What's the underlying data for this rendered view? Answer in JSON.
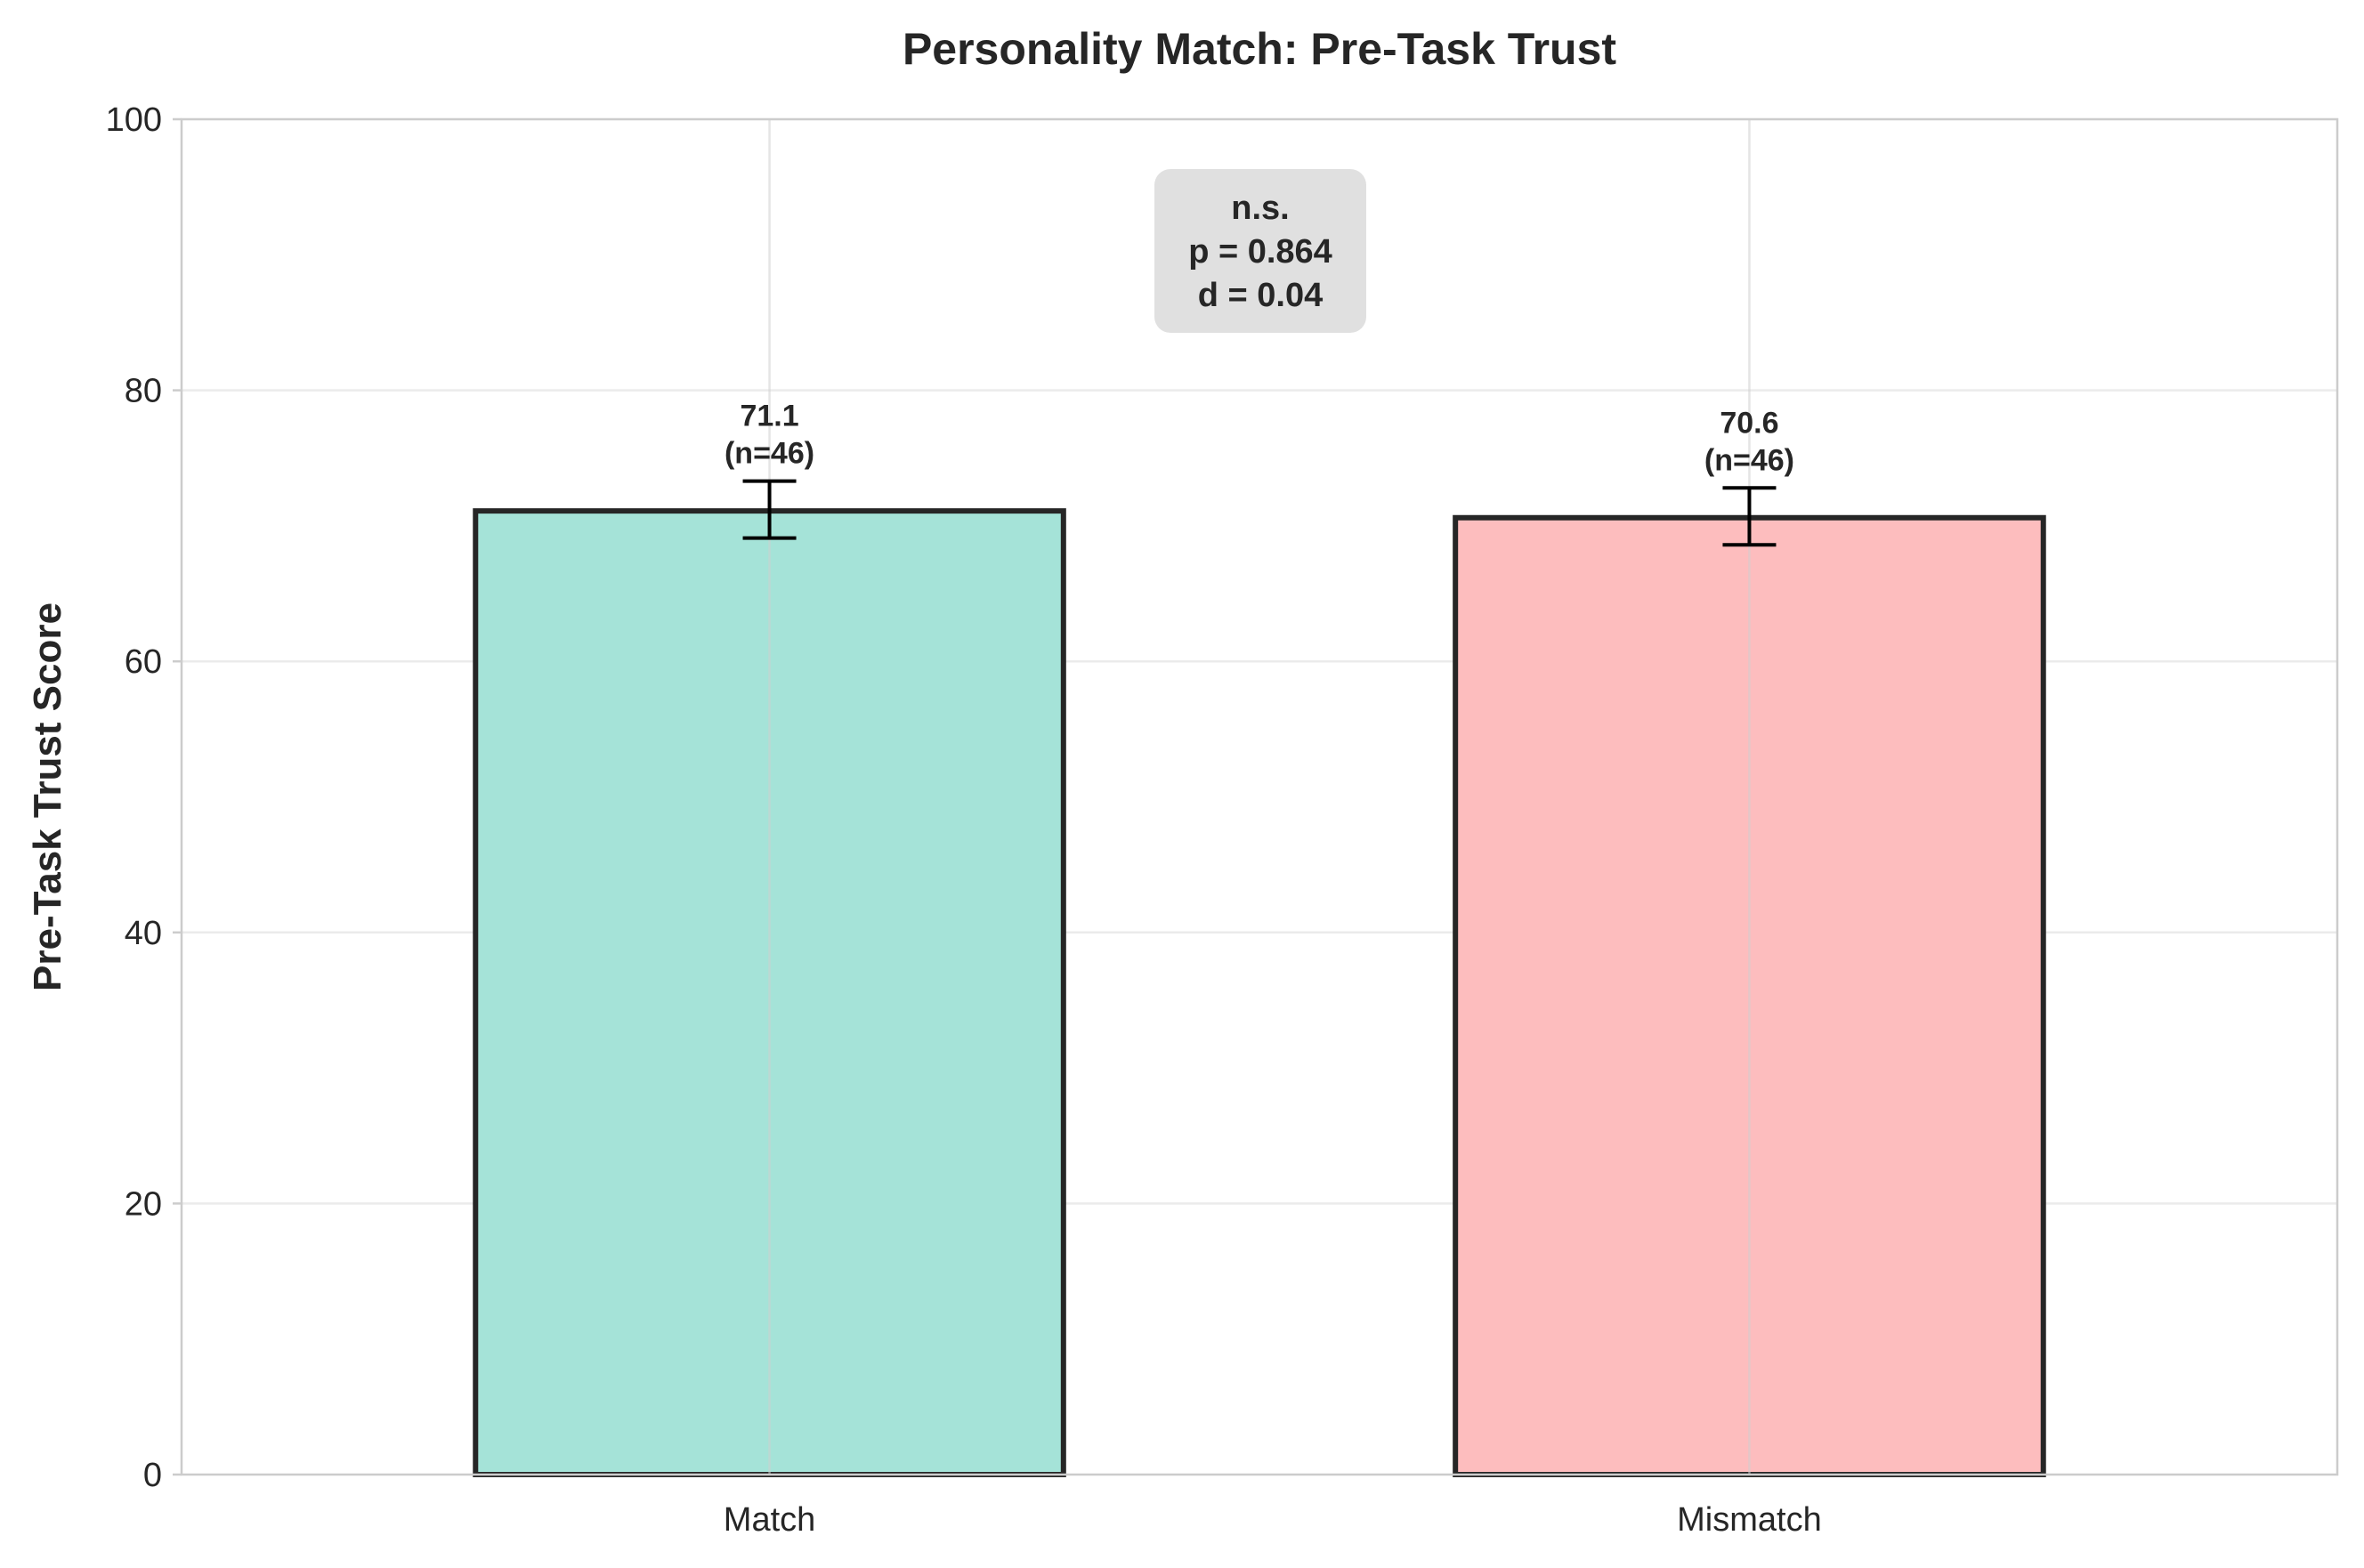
{
  "chart_data": {
    "type": "bar",
    "title": "Personality Match: Pre-Task Trust",
    "xlabel": "",
    "ylabel": "Pre-Task Trust Score",
    "ylim": [
      0,
      100
    ],
    "yticks": [
      0,
      20,
      40,
      60,
      80,
      100
    ],
    "grid": true,
    "categories": [
      "Match",
      "Mismatch"
    ],
    "values": [
      71.1,
      70.6
    ],
    "error_bars": [
      {
        "low": 69.1,
        "high": 73.3
      },
      {
        "low": 68.6,
        "high": 72.8
      }
    ],
    "bar_labels": [
      {
        "value": "71.1",
        "n": "(n=46)"
      },
      {
        "value": "70.6",
        "n": "(n=46)"
      }
    ],
    "colors": [
      "#a5e3d8",
      "#fdbdbe"
    ],
    "annotation": {
      "lines": [
        "n.s.",
        "p = 0.864",
        "d = 0.04"
      ],
      "background": "#e0e0e0"
    }
  }
}
